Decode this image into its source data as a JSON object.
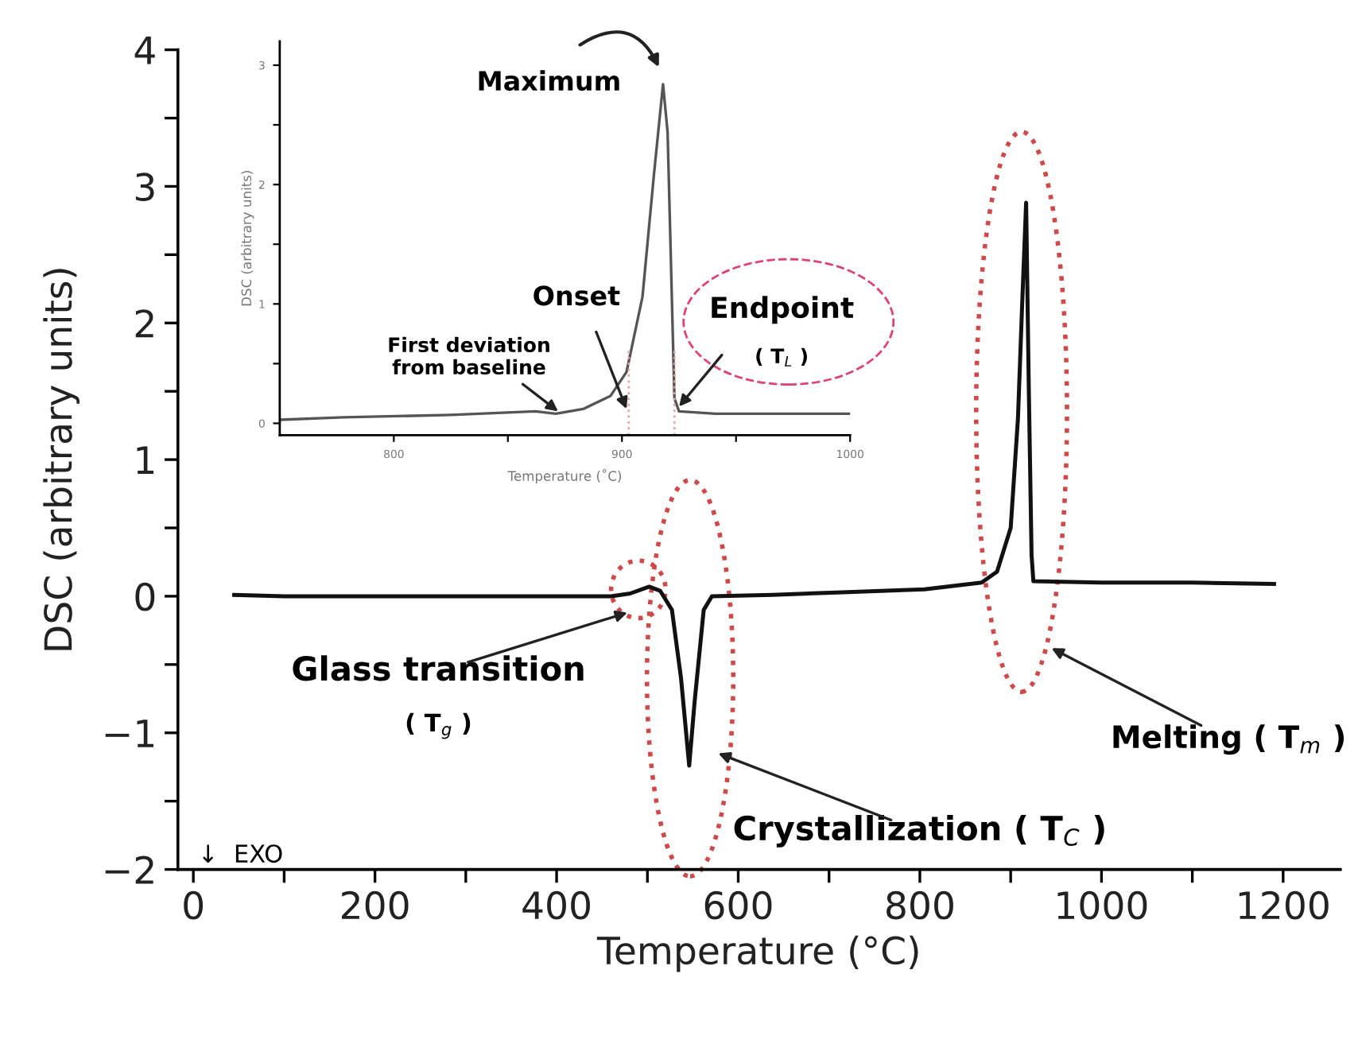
{
  "chart_data": [
    {
      "type": "line",
      "xlabel": "Temperature (°C)",
      "ylabel": "DSC (arbitrary units)",
      "x": [
        45,
        100,
        215,
        300,
        400,
        460,
        481,
        502,
        514,
        527,
        537,
        546,
        552,
        562,
        571,
        637,
        721,
        805,
        868,
        885,
        900,
        908,
        913,
        917,
        920,
        923,
        925,
        1000,
        1100,
        1190
      ],
      "series": [
        {
          "color": "#111111",
          "values": [
            0.01,
            0.0,
            0.0,
            0.0,
            0.0,
            0.0,
            0.02,
            0.07,
            0.04,
            -0.1,
            -0.6,
            -1.24,
            -0.77,
            -0.1,
            0.0,
            0.01,
            0.03,
            0.05,
            0.1,
            0.18,
            0.5,
            1.3,
            2.2,
            2.88,
            1.5,
            0.3,
            0.11,
            0.1,
            0.1,
            0.09
          ]
        }
      ],
      "xlim": [
        -17,
        1263
      ],
      "ylim": [
        -2,
        4
      ],
      "xticks": [
        0,
        {
          "value": 100,
          "label": null
        },
        200,
        {
          "value": 300,
          "label": null
        },
        400,
        {
          "value": 500,
          "label": null
        },
        600,
        {
          "value": 700,
          "label": null
        },
        800,
        {
          "value": 900,
          "label": null
        },
        1000,
        {
          "value": 1100,
          "label": null
        },
        1200
      ],
      "yticks": [
        {
          "value": -2,
          "label": "−2"
        },
        {
          "value": -1.5,
          "label": null
        },
        {
          "value": -1,
          "label": "−1"
        },
        {
          "value": -0.5,
          "label": null
        },
        0,
        {
          "value": 0.5,
          "label": null
        },
        1,
        {
          "value": 1.5,
          "label": null
        },
        2,
        {
          "value": 2.5,
          "label": null
        },
        3,
        {
          "value": 3.5,
          "label": null
        },
        4
      ],
      "annotations": [
        "Glass transition",
        "( T$_{g}$ )",
        "Crystallization ( T$_{C}$ )",
        "Melting ( T$_{m}$ )",
        "↓  EXO"
      ]
    },
    {
      "type": "line",
      "xlabel": "Temperature (˚C)",
      "ylabel": "DSC (arbitrary units)",
      "x": [
        750,
        778,
        825,
        862,
        871,
        883,
        895,
        902,
        909,
        914,
        918,
        920,
        923,
        925,
        941,
        1000
      ],
      "series": [
        {
          "color": "#555555",
          "values": [
            0.03,
            0.05,
            0.07,
            0.1,
            0.08,
            0.12,
            0.23,
            0.43,
            1.06,
            2.08,
            2.84,
            2.44,
            0.21,
            0.1,
            0.08,
            0.08
          ]
        }
      ],
      "xlim": [
        750,
        1000
      ],
      "ylim": [
        -0.1,
        3.2
      ],
      "xticks": [
        {
          "value": 800,
          "label": "800"
        },
        {
          "value": 850,
          "label": null
        },
        900,
        {
          "value": 950,
          "label": null
        },
        1000
      ],
      "yticks": [
        0,
        {
          "value": 0.5,
          "label": null
        },
        1,
        {
          "value": 1.5,
          "label": null
        },
        2,
        {
          "value": 2.5,
          "label": null
        },
        3
      ],
      "ref_lines": [
        {
          "axis": "x",
          "value": 903,
          "color": "#e8a0a0",
          "line_style": "dotted"
        },
        {
          "axis": "x",
          "value": 923,
          "color": "#e8a0a0",
          "line_style": "dotted"
        }
      ],
      "annotations": [
        "Maximum",
        {
          "text": "Onset",
          "x": 902,
          "y": 0.12
        },
        {
          "text": "First deviation\nfrom baseline",
          "x": 872,
          "y": 0.1
        },
        {
          "text": "Endpoint",
          "x": 925,
          "y": 0.14
        },
        "( T$_{L}$ )"
      ]
    }
  ]
}
